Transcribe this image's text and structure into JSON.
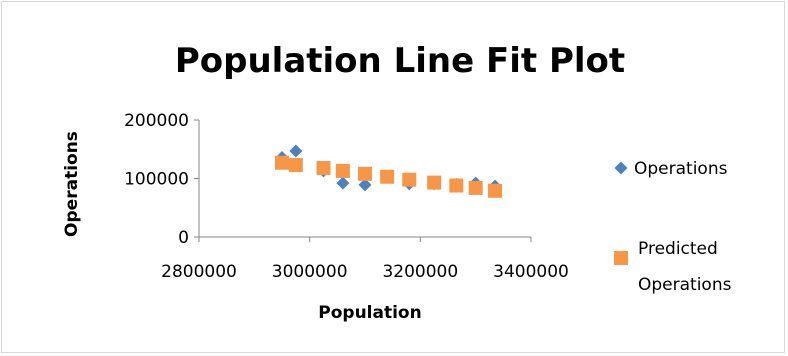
{
  "chart_data": {
    "type": "scatter",
    "title": "Population Line Fit  Plot",
    "xlabel": "Population",
    "ylabel": "Operations",
    "xlim": [
      2800000,
      3400000
    ],
    "ylim": [
      0,
      200000
    ],
    "x_ticks": [
      "2800000",
      "3000000",
      "3200000",
      "3400000"
    ],
    "y_ticks": [
      "0",
      "100000",
      "200000"
    ],
    "x_tick_values": [
      2800000,
      3000000,
      3200000,
      3400000
    ],
    "y_tick_values": [
      0,
      100000,
      200000
    ],
    "grid": false,
    "legend_position": "right",
    "series": [
      {
        "name": "Operations",
        "marker": "diamond",
        "color": "#4F81BD",
        "points": [
          [
            2950000,
            136000
          ],
          [
            2975000,
            147000
          ],
          [
            3025000,
            113000
          ],
          [
            3060000,
            92000
          ],
          [
            3100000,
            89000
          ],
          [
            3140000,
            103000
          ],
          [
            3180000,
            91000
          ],
          [
            3225000,
            91000
          ],
          [
            3265000,
            90000
          ],
          [
            3300000,
            92000
          ],
          [
            3335000,
            87000
          ]
        ]
      },
      {
        "name": "Predicted Operations",
        "marker": "square",
        "color": "#F79646",
        "points": [
          [
            2950000,
            127000
          ],
          [
            2975000,
            123000
          ],
          [
            3025000,
            118000
          ],
          [
            3060000,
            113000
          ],
          [
            3100000,
            108000
          ],
          [
            3140000,
            103000
          ],
          [
            3180000,
            98000
          ],
          [
            3225000,
            93000
          ],
          [
            3265000,
            88000
          ],
          [
            3300000,
            84000
          ],
          [
            3335000,
            79000
          ]
        ]
      }
    ]
  }
}
